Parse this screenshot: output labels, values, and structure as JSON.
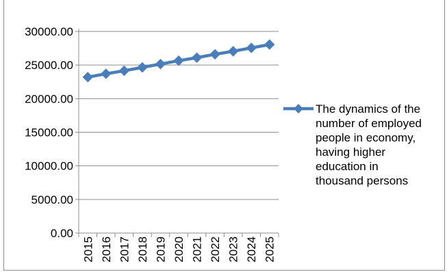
{
  "chart_data": {
    "type": "line",
    "categories": [
      "2015",
      "2016",
      "2017",
      "2018",
      "2019",
      "2020",
      "2021",
      "2022",
      "2023",
      "2024",
      "2025"
    ],
    "series": [
      {
        "name": "The dynamics of the number of employed people in economy, having higher education in thousand persons",
        "values": [
          23200,
          23700,
          24150,
          24650,
          25150,
          25650,
          26100,
          26600,
          27050,
          27550,
          28050
        ],
        "color": "#4a7ebb",
        "marker": "diamond"
      }
    ],
    "y_tick_labels": [
      "0.00",
      "5000.00",
      "10000.00",
      "15000.00",
      "20000.00",
      "25000.00",
      "30000.00"
    ],
    "ylim": [
      0,
      30000
    ],
    "y_step": 5000,
    "grid": "horizontal",
    "legend_position": "right",
    "legend_lines": [
      "The dynamics of the",
      "number of employed",
      "people in economy,",
      "having higher",
      "education in",
      "thousand persons"
    ],
    "title": "",
    "xlabel": "",
    "ylabel": ""
  }
}
